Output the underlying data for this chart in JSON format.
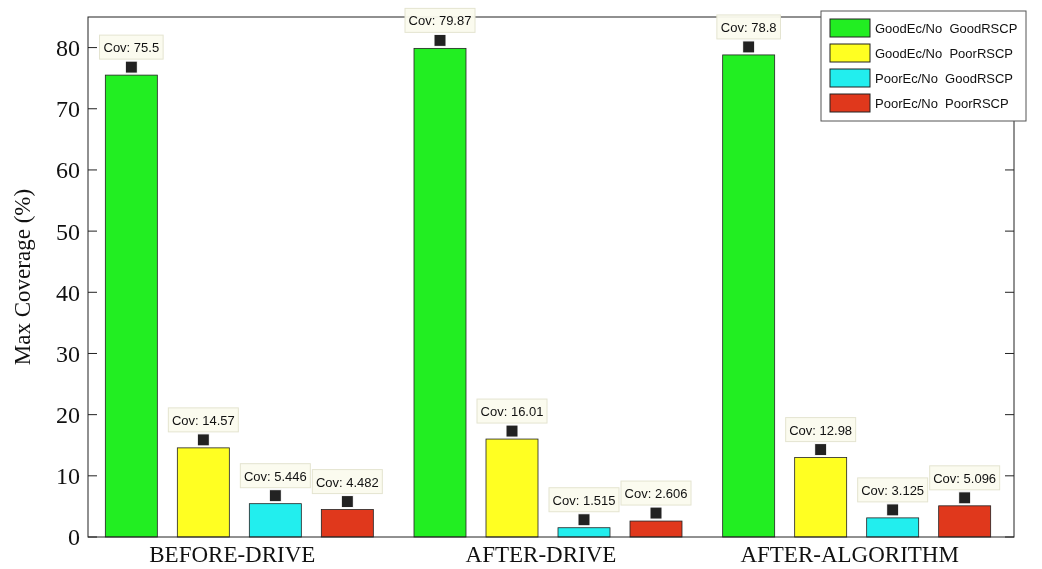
{
  "chart_data": {
    "type": "bar",
    "ylabel": "Max Coverage (%)",
    "categories": [
      "BEFORE-DRIVE",
      "AFTER-DRIVE",
      "AFTER-ALGORITHM"
    ],
    "series": [
      {
        "name": "GoodEc/No  GoodRSCP",
        "color": "#22ee22",
        "values": [
          75.5,
          79.87,
          78.8
        ],
        "value_labels": [
          "Cov: 75.5",
          "Cov: 79.87",
          "Cov: 78.8"
        ]
      },
      {
        "name": "GoodEc/No  PoorRSCP",
        "color": "#ffff22",
        "values": [
          14.57,
          16.01,
          12.98
        ],
        "value_labels": [
          "Cov: 14.57",
          "Cov: 16.01",
          "Cov: 12.98"
        ]
      },
      {
        "name": "PoorEc/No  GoodRSCP",
        "color": "#22eeee",
        "values": [
          5.446,
          1.515,
          3.125
        ],
        "value_labels": [
          "Cov: 5.446",
          "Cov: 1.515",
          "Cov: 3.125"
        ]
      },
      {
        "name": "PoorEc/No  PoorRSCP",
        "color": "#e0381c",
        "values": [
          4.482,
          2.606,
          5.096
        ],
        "value_labels": [
          "Cov: 4.482",
          "Cov: 2.606",
          "Cov: 5.096"
        ]
      }
    ],
    "ylim": [
      0,
      85
    ],
    "yticks": [
      0,
      10,
      20,
      30,
      40,
      50,
      60,
      70,
      80
    ],
    "grid": false,
    "legend": "top right"
  }
}
